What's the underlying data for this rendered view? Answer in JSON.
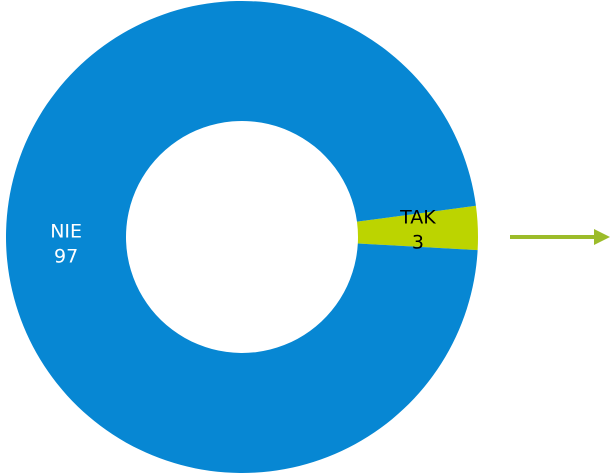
{
  "chart_data": {
    "type": "donut",
    "categories": [
      "TAK",
      "NIE"
    ],
    "values": [
      3,
      97
    ],
    "colors": [
      "#bcd400",
      "#0787d3"
    ],
    "label_colors": [
      "#000000",
      "#ffffff"
    ]
  }
}
